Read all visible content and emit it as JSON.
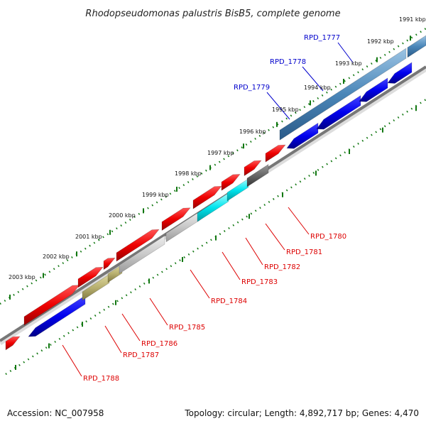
{
  "title": "Rhodopseudomonas palustris BisB5, complete genome",
  "footer": {
    "accession": "Accession: NC_007958",
    "info": "Topology: circular; Length: 4,892,717 bp; Genes: 4,470"
  },
  "colors": {
    "forward_gene": "#ee0000",
    "reverse_gene": "#0000ee",
    "backbone": "#888888",
    "tick": "#117711",
    "label_red": "#dd0000",
    "label_blue": "#0000cc",
    "highlight_blue": "#4a86b8",
    "cyan": "#00e5ee",
    "olive": "#b8b070",
    "light_gray": "#c8c8c8",
    "dark_gray": "#666666"
  },
  "kbp_labels": [
    "1991 kbp",
    "1992 kbp",
    "1993 kbp",
    "1994 kbp",
    "1995 kbp",
    "1996 kbp",
    "1997 kbp",
    "1998 kbp",
    "1999 kbp",
    "2000 kbp",
    "2001 kbp",
    "2002 kbp",
    "2003 kbp"
  ],
  "gene_labels": [
    {
      "text": "RPD_1777",
      "color": "blue"
    },
    {
      "text": "RPD_1778",
      "color": "blue"
    },
    {
      "text": "RPD_1779",
      "color": "blue"
    },
    {
      "text": "RPD_1780",
      "color": "red"
    },
    {
      "text": "RPD_1781",
      "color": "red"
    },
    {
      "text": "RPD_1782",
      "color": "red"
    },
    {
      "text": "RPD_1783",
      "color": "red"
    },
    {
      "text": "RPD_1784",
      "color": "red"
    },
    {
      "text": "RPD_1785",
      "color": "red"
    },
    {
      "text": "RPD_1786",
      "color": "red"
    },
    {
      "text": "RPD_1787",
      "color": "red"
    },
    {
      "text": "RPD_1788",
      "color": "red"
    }
  ]
}
